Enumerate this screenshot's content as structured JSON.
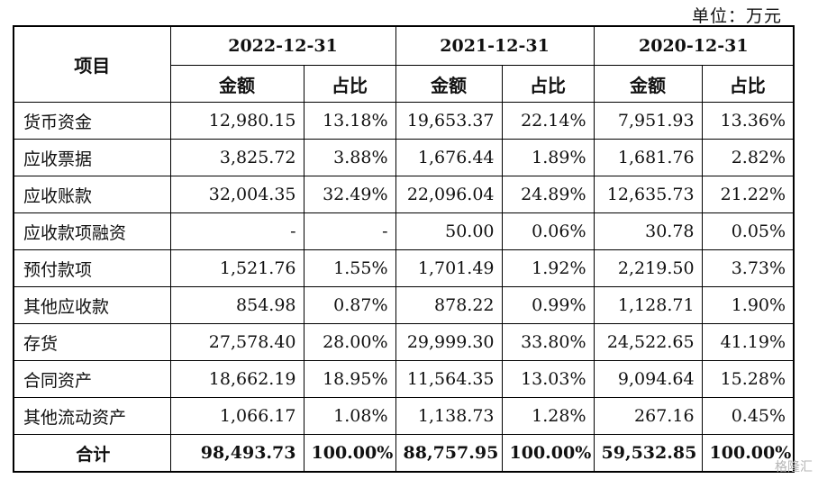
{
  "unit_label": "单位：万元",
  "header": {
    "item_label": "项目",
    "years": [
      "2022-12-31",
      "2021-12-31",
      "2020-12-31"
    ],
    "amount_label": "金额",
    "ratio_label": "占比"
  },
  "rows": [
    {
      "item": "货币资金",
      "cells": [
        "12,980.15",
        "13.18%",
        "19,653.37",
        "22.14%",
        "7,951.93",
        "13.36%"
      ]
    },
    {
      "item": "应收票据",
      "cells": [
        "3,825.72",
        "3.88%",
        "1,676.44",
        "1.89%",
        "1,681.76",
        "2.82%"
      ]
    },
    {
      "item": "应收账款",
      "cells": [
        "32,004.35",
        "32.49%",
        "22,096.04",
        "24.89%",
        "12,635.73",
        "21.22%"
      ]
    },
    {
      "item": "应收款项融资",
      "cells": [
        "-",
        "-",
        "50.00",
        "0.06%",
        "30.78",
        "0.05%"
      ]
    },
    {
      "item": "预付款项",
      "cells": [
        "1,521.76",
        "1.55%",
        "1,701.49",
        "1.92%",
        "2,219.50",
        "3.73%"
      ]
    },
    {
      "item": "其他应收款",
      "cells": [
        "854.98",
        "0.87%",
        "878.22",
        "0.99%",
        "1,128.71",
        "1.90%"
      ]
    },
    {
      "item": "存货",
      "cells": [
        "27,578.40",
        "28.00%",
        "29,999.30",
        "33.80%",
        "24,522.65",
        "41.19%"
      ]
    },
    {
      "item": "合同资产",
      "cells": [
        "18,662.19",
        "18.95%",
        "11,564.35",
        "13.03%",
        "9,094.64",
        "15.28%"
      ]
    },
    {
      "item": "其他流动资产",
      "cells": [
        "1,066.17",
        "1.08%",
        "1,138.73",
        "1.28%",
        "267.16",
        "0.45%"
      ]
    }
  ],
  "total": {
    "item": "合计",
    "cells": [
      "98,493.73",
      "100.00%",
      "88,757.95",
      "100.00%",
      "59,532.85",
      "100.00%"
    ]
  },
  "watermark": "格隆汇"
}
